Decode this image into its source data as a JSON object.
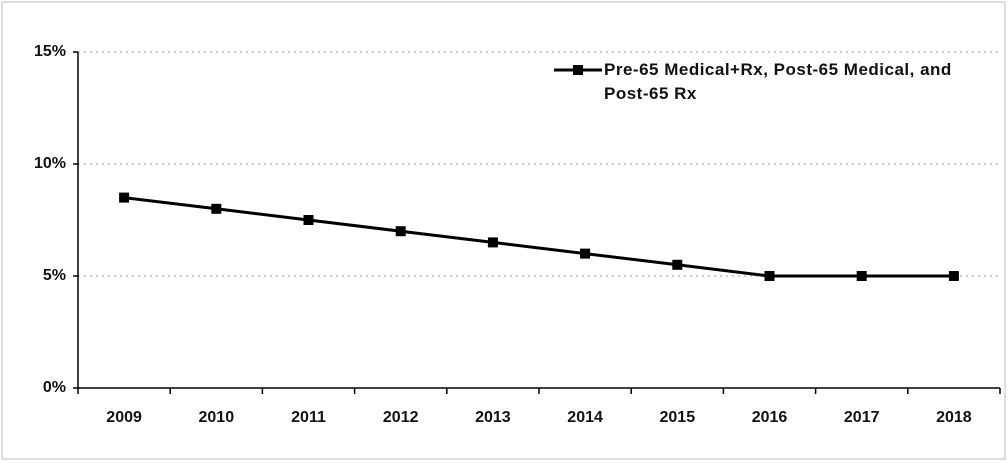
{
  "chart_data": {
    "type": "line",
    "categories": [
      "2009",
      "2010",
      "2011",
      "2012",
      "2013",
      "2014",
      "2015",
      "2016",
      "2017",
      "2018"
    ],
    "series": [
      {
        "name": "Pre-65 Medical+Rx, Post-65 Medical, and Post-65 Rx",
        "color": "#000000",
        "values": [
          8.5,
          8.0,
          7.5,
          7.0,
          6.5,
          6.0,
          5.5,
          5.0,
          5.0,
          5.0
        ]
      }
    ],
    "ylim": [
      0,
      15
    ],
    "yticks": [
      {
        "value": 0,
        "label": "0%"
      },
      {
        "value": 5,
        "label": "5%"
      },
      {
        "value": 10,
        "label": "10%"
      },
      {
        "value": 15,
        "label": "15%"
      }
    ],
    "grid": true,
    "legend": "top-right"
  }
}
